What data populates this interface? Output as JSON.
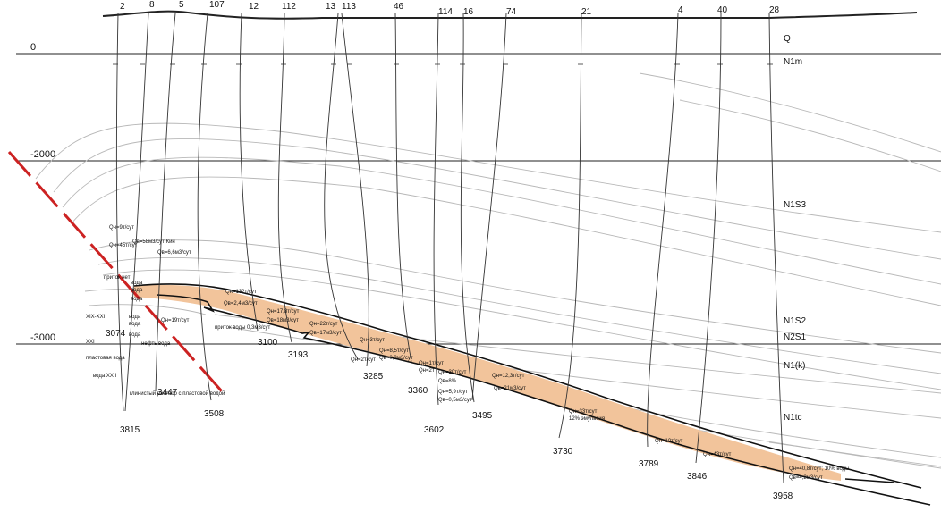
{
  "top_well_numbers": [
    "2",
    "8",
    "5",
    "107",
    "12",
    "112",
    "13",
    "113",
    "46",
    "114",
    "16",
    "74",
    "21",
    "4",
    "40",
    "28"
  ],
  "depth_axis": [
    "0",
    "-2000",
    "-3000"
  ],
  "strata": [
    "Q",
    "N1m",
    "N1S3",
    "N1S2",
    "N2S1",
    "N1(k)",
    "N1tc"
  ],
  "bottom_depths": [
    "3815",
    "3074",
    "3447",
    "3508",
    "3100",
    "3193",
    "3285",
    "3360",
    "3602",
    "3495",
    "3730",
    "3789",
    "3846",
    "3958"
  ],
  "left_annotations": {
    "pritok_net": "приток нет",
    "xix_xxi": "XIX-XXI",
    "xxi": "XXI",
    "plast_voda": "пластовая вода",
    "voda_xxii": "вода XXII",
    "voda1": "вода",
    "voda2": "вода",
    "voda3": "вода",
    "voda4": "вода",
    "voda5": "вода",
    "voda6": "вода",
    "neft_voda": "нефть вода",
    "glinisty": "глинистый раствор с пластовой водой"
  },
  "flow_labels": {
    "q1": "Qн=9т/сут",
    "q2": "Qн=45т/сут",
    "q3": "Qв=58м3/сут Кин",
    "q4": "Qв=6,6м3/сут",
    "q5": "Qн=19т/сут",
    "q6": "Qн=132т/сут",
    "q7": "Qв=2,4м3/сут",
    "q8": "Qн=17,8т/сут",
    "q9": "Qв=18м3/сут",
    "q10": "Qн=22т/сут",
    "q11": "Qв=17м3/сут",
    "q12": "приток воды 0,3м3/сут",
    "q13": "Qн=3т/сут",
    "q14": "Qн=2т/сут",
    "q15": "Qн=8,5т/сут",
    "q16": "Qв=0,3м3/сут",
    "q17": "Qн=1т/сут",
    "q18": "Qн=2т",
    "q19": "Qн=30т/сут",
    "q20": "Qв=8%",
    "q21": "Qн=5,9т/сут",
    "q22": "Qв=0,5м3/сут",
    "q23": "Qн=12,3т/сут",
    "q24": "Qв=21м3/сут",
    "q25": "Qн=33т/сут",
    "q26": "12% эмульсия",
    "q27": "Qн=10т/сут",
    "q28": "Qн=43т/сут",
    "q29": "Qн=40,8т/сут; 10% воды",
    "q30": "Qв=4,2м3/сут"
  },
  "colors": {
    "reservoir": "#f2c49b",
    "fault": "#cc2222",
    "strata_line": "#b8b8b8",
    "line": "#111111"
  }
}
